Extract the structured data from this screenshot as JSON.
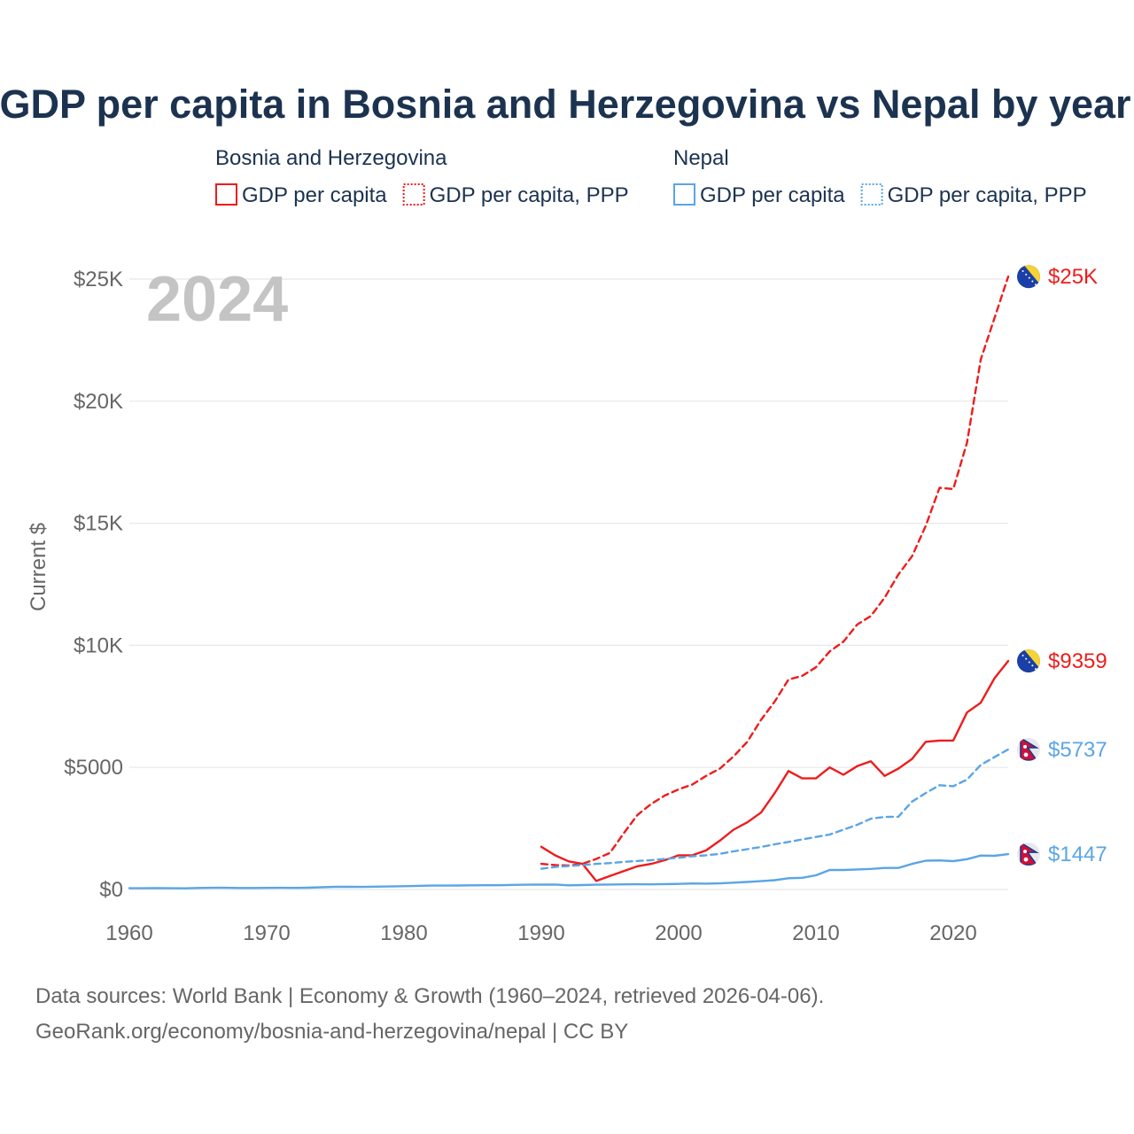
{
  "colors": {
    "bosnia": "#ee1c1c",
    "nepal": "#5aa5e6",
    "title": "#1c3350",
    "axis_text": "#666666",
    "grid": "#e8e8e8",
    "watermark": "#c4c4c4",
    "footer": "#666666"
  },
  "chart_data": {
    "type": "line",
    "title": "GDP per capita in Bosnia and Herzegovina vs Nepal by year",
    "ylabel": "Current $",
    "xlabel": "",
    "xlim": [
      1960,
      2024
    ],
    "ylim": [
      0,
      25000
    ],
    "x_ticks": [
      1960,
      1970,
      1980,
      1990,
      2000,
      2010,
      2020
    ],
    "y_ticks": [
      {
        "value": 0,
        "label": "$0"
      },
      {
        "value": 5000,
        "label": "$5000"
      },
      {
        "value": 10000,
        "label": "$10K"
      },
      {
        "value": 15000,
        "label": "$15K"
      },
      {
        "value": 20000,
        "label": "$20K"
      },
      {
        "value": 25000,
        "label": "$25K"
      }
    ],
    "grid": true,
    "year_watermark": "2024",
    "legend": {
      "placement": "top",
      "groups": [
        {
          "country": "Bosnia and Herzegovina",
          "color_key": "bosnia",
          "items": [
            {
              "label": "GDP per capita",
              "style": "solid"
            },
            {
              "label": "GDP per capita, PPP",
              "style": "dotted"
            }
          ]
        },
        {
          "country": "Nepal",
          "color_key": "nepal",
          "items": [
            {
              "label": "GDP per capita",
              "style": "solid"
            },
            {
              "label": "GDP per capita, PPP",
              "style": "dotted"
            }
          ]
        }
      ]
    },
    "series": [
      {
        "name": "Bosnia and Herzegovina GDP per capita, PPP",
        "country": "Bosnia and Herzegovina",
        "color_key": "bosnia",
        "dash": true,
        "end_label": "$25K",
        "flag": "bosnia",
        "x": [
          1990,
          1991,
          1992,
          1993,
          1994,
          1995,
          1996,
          1997,
          1998,
          1999,
          2000,
          2001,
          2002,
          2003,
          2004,
          2005,
          2006,
          2007,
          2008,
          2009,
          2010,
          2011,
          2012,
          2013,
          2014,
          2015,
          2016,
          2017,
          2018,
          2019,
          2020,
          2021,
          2022,
          2023,
          2024
        ],
        "values": [
          1050,
          1000,
          980,
          1050,
          1250,
          1500,
          2300,
          3050,
          3500,
          3850,
          4100,
          4300,
          4650,
          4950,
          5450,
          6050,
          6950,
          7700,
          8600,
          8750,
          9100,
          9750,
          10150,
          10850,
          11200,
          11950,
          12900,
          13650,
          14900,
          16450,
          16400,
          18300,
          21700,
          23400,
          25100
        ]
      },
      {
        "name": "Bosnia and Herzegovina GDP per capita",
        "country": "Bosnia and Herzegovina",
        "color_key": "bosnia",
        "dash": false,
        "end_label": "$9359",
        "flag": "bosnia",
        "x": [
          1990,
          1991,
          1992,
          1993,
          1994,
          1995,
          1996,
          1997,
          1998,
          1999,
          2000,
          2001,
          2002,
          2003,
          2004,
          2005,
          2006,
          2007,
          2008,
          2009,
          2010,
          2011,
          2012,
          2013,
          2014,
          2015,
          2016,
          2017,
          2018,
          2019,
          2020,
          2021,
          2022,
          2023,
          2024
        ],
        "values": [
          1750,
          1400,
          1150,
          1050,
          350,
          550,
          750,
          950,
          1050,
          1200,
          1400,
          1400,
          1600,
          2000,
          2450,
          2750,
          3150,
          3950,
          4850,
          4550,
          4550,
          5000,
          4700,
          5050,
          5250,
          4650,
          4950,
          5350,
          6050,
          6100,
          6100,
          7250,
          7650,
          8650,
          9359
        ]
      },
      {
        "name": "Nepal GDP per capita, PPP",
        "country": "Nepal",
        "color_key": "nepal",
        "dash": true,
        "end_label": "$5737",
        "flag": "nepal",
        "x": [
          1990,
          1991,
          1992,
          1993,
          1994,
          1995,
          1996,
          1997,
          1998,
          1999,
          2000,
          2001,
          2002,
          2003,
          2004,
          2005,
          2006,
          2007,
          2008,
          2009,
          2010,
          2011,
          2012,
          2013,
          2014,
          2015,
          2016,
          2017,
          2018,
          2019,
          2020,
          2021,
          2022,
          2023,
          2024
        ],
        "values": [
          850,
          920,
          960,
          1000,
          1050,
          1080,
          1130,
          1170,
          1200,
          1250,
          1300,
          1360,
          1400,
          1460,
          1560,
          1650,
          1740,
          1850,
          1950,
          2050,
          2150,
          2250,
          2450,
          2650,
          2900,
          2970,
          2980,
          3600,
          3950,
          4270,
          4230,
          4500,
          5100,
          5420,
          5737
        ]
      },
      {
        "name": "Nepal GDP per capita",
        "country": "Nepal",
        "color_key": "nepal",
        "dash": false,
        "end_label": "$1447",
        "flag": "nepal",
        "x": [
          1960,
          1961,
          1962,
          1963,
          1964,
          1965,
          1966,
          1967,
          1968,
          1969,
          1970,
          1971,
          1972,
          1973,
          1974,
          1975,
          1976,
          1977,
          1978,
          1979,
          1980,
          1981,
          1982,
          1983,
          1984,
          1985,
          1986,
          1987,
          1988,
          1989,
          1990,
          1991,
          1992,
          1993,
          1994,
          1995,
          1996,
          1997,
          1998,
          1999,
          2000,
          2001,
          2002,
          2003,
          2004,
          2005,
          2006,
          2007,
          2008,
          2009,
          2010,
          2011,
          2012,
          2013,
          2014,
          2015,
          2016,
          2017,
          2018,
          2019,
          2020,
          2021,
          2022,
          2023,
          2024
        ],
        "values": [
          50,
          52,
          55,
          50,
          48,
          60,
          70,
          68,
          62,
          60,
          65,
          68,
          65,
          72,
          90,
          110,
          108,
          105,
          115,
          125,
          135,
          150,
          160,
          160,
          165,
          170,
          175,
          175,
          190,
          195,
          200,
          205,
          170,
          180,
          195,
          205,
          210,
          215,
          210,
          220,
          230,
          245,
          240,
          250,
          280,
          310,
          340,
          380,
          460,
          480,
          580,
          800,
          800,
          820,
          840,
          880,
          880,
          1050,
          1180,
          1190,
          1160,
          1240,
          1390,
          1380,
          1447
        ]
      }
    ]
  },
  "footer": {
    "line1": "Data sources: World Bank | Economy & Growth (1960–2024, retrieved 2026-04-06).",
    "line2": "GeoRank.org/economy/bosnia-and-herzegovina/nepal | CC BY"
  }
}
